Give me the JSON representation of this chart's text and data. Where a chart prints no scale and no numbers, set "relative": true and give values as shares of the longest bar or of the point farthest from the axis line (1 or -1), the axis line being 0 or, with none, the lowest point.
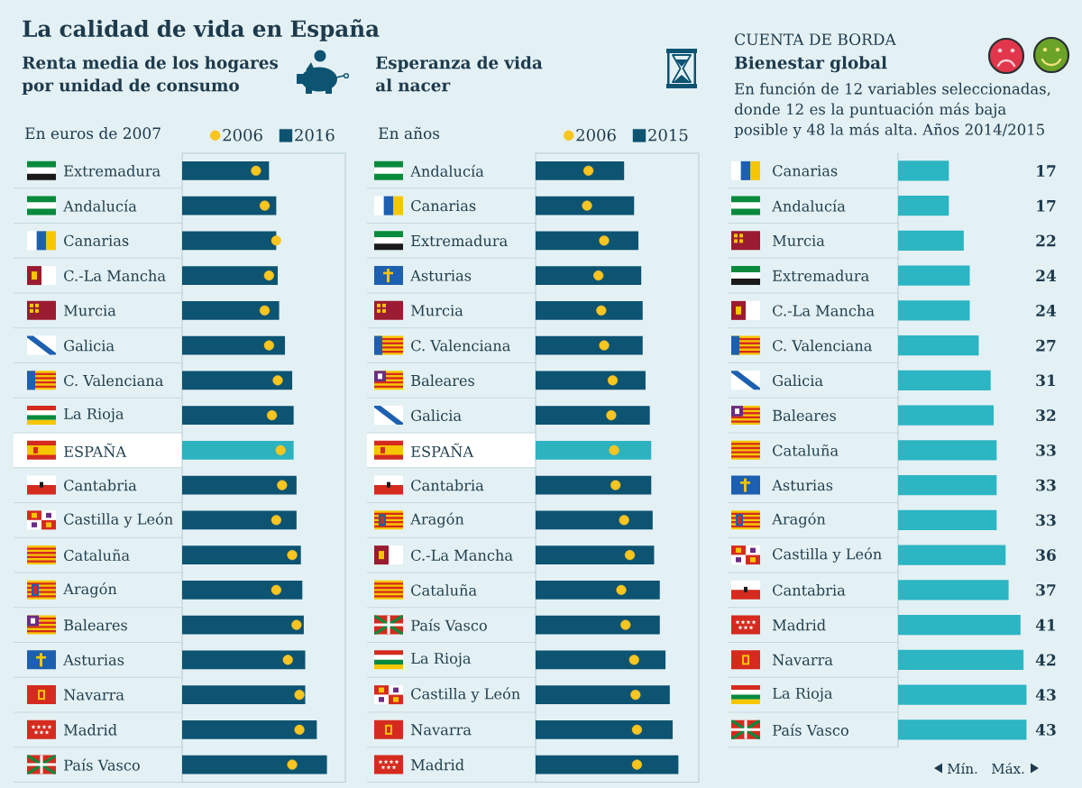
{
  "chart_data": [
    {
      "type": "bar",
      "orientation": "horizontal",
      "relative": true,
      "title": "La calidad de vida en España",
      "subtitle": "Renta media de los hogares por unidad de consumo",
      "xlabel": "En euros de 2007",
      "legend": "top right",
      "marker": "circle",
      "categories": [
        "Extremadura",
        "Andalucía",
        "Canarias",
        "C.-La Mancha",
        "Murcia",
        "Galicia",
        "C. Valenciana",
        "La Rioja",
        "ESPAÑA",
        "Cantabria",
        "Castilla y León",
        "Cataluña",
        "Aragón",
        "Baleares",
        "Asturias",
        "Navarra",
        "Madrid",
        "País Vasco"
      ],
      "series": [
        {
          "name": "2006",
          "type": "scatter",
          "color": "#f9c520",
          "values": [
            0.51,
            0.57,
            0.65,
            0.6,
            0.57,
            0.6,
            0.66,
            0.62,
            0.68,
            0.69,
            0.65,
            0.76,
            0.65,
            0.79,
            0.73,
            0.81,
            0.81,
            0.76
          ]
        },
        {
          "name": "2016",
          "type": "bar",
          "color": "#0d5372",
          "colors": [
            "#0d5372",
            "#0d5372",
            "#0d5372",
            "#0d5372",
            "#0d5372",
            "#0d5372",
            "#0d5372",
            "#0d5372",
            "#2db3c0",
            "#0d5372",
            "#0d5372",
            "#0d5372",
            "#0d5372",
            "#0d5372",
            "#0d5372",
            "#0d5372",
            "#0d5372",
            "#0d5372"
          ],
          "values": [
            0.6,
            0.65,
            0.65,
            0.66,
            0.67,
            0.71,
            0.76,
            0.77,
            0.77,
            0.79,
            0.79,
            0.82,
            0.83,
            0.84,
            0.85,
            0.85,
            0.93,
            1
          ]
        }
      ]
    },
    {
      "type": "bar",
      "orientation": "horizontal",
      "relative": true,
      "title": "Esperanza de vida al nacer",
      "xlabel": "En años",
      "legend": "top right",
      "marker": "circle",
      "categories": [
        "Andalucía",
        "Canarias",
        "Extremadura",
        "Asturias",
        "Murcia",
        "C. Valenciana",
        "Baleares",
        "Galicia",
        "ESPAÑA",
        "Cantabria",
        "Aragón",
        "C.-La Mancha",
        "Cataluña",
        "País Vasco",
        "La Rioja",
        "Castilla y León",
        "Navarra",
        "Madrid"
      ],
      "series": [
        {
          "name": "2006",
          "type": "scatter",
          "color": "#f9c520",
          "values": [
            0.37,
            0.36,
            0.48,
            0.44,
            0.46,
            0.48,
            0.54,
            0.53,
            0.55,
            0.56,
            0.62,
            0.66,
            0.6,
            0.63,
            0.69,
            0.7,
            0.71,
            0.71
          ]
        },
        {
          "name": "2015",
          "type": "bar",
          "color": "#0d5372",
          "colors": [
            "#0d5372",
            "#0d5372",
            "#0d5372",
            "#0d5372",
            "#0d5372",
            "#0d5372",
            "#0d5372",
            "#0d5372",
            "#2db3c0",
            "#0d5372",
            "#0d5372",
            "#0d5372",
            "#0d5372",
            "#0d5372",
            "#0d5372",
            "#0d5372",
            "#0d5372",
            "#0d5372"
          ],
          "values": [
            0.62,
            0.69,
            0.72,
            0.74,
            0.75,
            0.75,
            0.77,
            0.8,
            0.81,
            0.81,
            0.82,
            0.83,
            0.87,
            0.87,
            0.91,
            0.94,
            0.96,
            1
          ]
        }
      ]
    },
    {
      "type": "bar",
      "orientation": "horizontal",
      "title": "Bienestar global",
      "subtitle": "En función de 12 variables seleccionadas, donde 12 es la puntuación más baja posible y 48 la más alta. Años 2014/2015",
      "annotations": [
        "CUENTA DE BORDA",
        "Mín.",
        "Máx."
      ],
      "tick_labels": "y",
      "categories": [
        "Canarias",
        "Andalucía",
        "Murcia",
        "Extremadura",
        "C.-La Mancha",
        "C. Valenciana",
        "Galicia",
        "Baleares",
        "Cataluña",
        "Asturias",
        "Aragón",
        "Castilla y León",
        "Cantabria",
        "Madrid",
        "Navarra",
        "La Rioja",
        "País Vasco"
      ],
      "values": [
        17,
        17,
        22,
        24,
        24,
        27,
        31,
        32,
        33,
        33,
        33,
        36,
        37,
        41,
        42,
        43,
        43
      ],
      "color": "#2cb5c3",
      "data_labels": true
    }
  ]
}
